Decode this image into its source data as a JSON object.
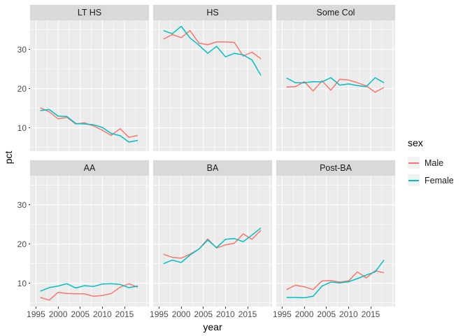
{
  "chart_data": {
    "type": "line",
    "title": "",
    "xlabel": "year",
    "ylabel": "pct",
    "x": [
      1996,
      1998,
      2000,
      2002,
      2004,
      2006,
      2008,
      2010,
      2012,
      2014,
      2016,
      2018
    ],
    "x_ticks": [
      1995,
      2000,
      2005,
      2010,
      2015
    ],
    "x_minor_ticks": [
      1997.5,
      2002.5,
      2007.5,
      2012.5,
      2017.5
    ],
    "x_extra_major_gridline": 2020,
    "y_ticks": [
      10,
      20,
      30
    ],
    "y_minor_ticks": [
      5,
      15,
      25,
      35
    ],
    "x_domain": [
      1993.67,
      2020.53
    ],
    "y_domain": [
      4.06,
      37.42
    ],
    "grid": true,
    "legend_position": "right",
    "legend": {
      "title": "sex",
      "entries": [
        {
          "label": "Male",
          "color": "#F8766D"
        },
        {
          "label": "Female",
          "color": "#00BFC4"
        }
      ]
    },
    "theme": {
      "panel_background": "#EBEBEB",
      "strip_background": "#D9D9D9",
      "grid_color": "#FFFFFF",
      "axis_text_color": "#4D4D4D",
      "tick_mark_color": "#333333"
    },
    "facets": [
      {
        "label": "LT HS",
        "series": [
          {
            "name": "Male",
            "values": [
              15.1,
              14.1,
              12.3,
              12.7,
              11.0,
              11.3,
              10.5,
              9.4,
              8.1,
              9.8,
              7.6,
              8.1
            ]
          },
          {
            "name": "Female",
            "values": [
              14.4,
              14.7,
              13.0,
              12.9,
              11.1,
              11.0,
              10.8,
              10.1,
              8.6,
              8.0,
              6.4,
              6.8
            ]
          }
        ]
      },
      {
        "label": "HS",
        "series": [
          {
            "name": "Male",
            "values": [
              32.6,
              33.8,
              33.0,
              34.8,
              31.6,
              31.2,
              31.9,
              31.9,
              31.8,
              28.3,
              29.3,
              27.6
            ]
          },
          {
            "name": "Female",
            "values": [
              34.8,
              34.0,
              35.9,
              32.9,
              31.1,
              29.0,
              30.8,
              28.1,
              29.0,
              28.6,
              27.3,
              23.4
            ]
          }
        ]
      },
      {
        "label": "Some Col",
        "series": [
          {
            "name": "Male",
            "values": [
              20.4,
              20.5,
              21.8,
              19.4,
              22.0,
              19.6,
              22.4,
              22.2,
              21.5,
              20.7,
              19.1,
              20.3
            ]
          },
          {
            "name": "Female",
            "values": [
              22.7,
              21.5,
              21.5,
              21.8,
              21.7,
              22.8,
              20.9,
              21.2,
              20.8,
              20.5,
              22.8,
              21.5
            ]
          }
        ]
      },
      {
        "label": "AA",
        "series": [
          {
            "name": "Male",
            "values": [
              6.4,
              5.7,
              7.7,
              7.4,
              7.3,
              7.3,
              6.7,
              6.9,
              7.4,
              9.0,
              9.9,
              9.0
            ]
          },
          {
            "name": "Female",
            "values": [
              8.0,
              8.9,
              9.3,
              9.9,
              8.8,
              9.4,
              9.2,
              9.8,
              9.9,
              9.7,
              8.9,
              9.3
            ]
          }
        ]
      },
      {
        "label": "BA",
        "series": [
          {
            "name": "Male",
            "values": [
              17.4,
              16.6,
              16.4,
              17.4,
              18.7,
              21.3,
              19.0,
              19.8,
              20.2,
              22.6,
              21.2,
              23.5
            ]
          },
          {
            "name": "Female",
            "values": [
              15.0,
              15.9,
              15.3,
              17.2,
              18.7,
              21.0,
              19.1,
              21.2,
              21.4,
              20.6,
              22.3,
              24.1
            ]
          }
        ]
      },
      {
        "label": "Post-BA",
        "series": [
          {
            "name": "Male",
            "values": [
              8.4,
              9.5,
              9.1,
              8.4,
              10.6,
              10.7,
              10.3,
              10.6,
              12.9,
              11.4,
              13.2,
              12.7
            ]
          },
          {
            "name": "Female",
            "values": [
              6.4,
              6.4,
              6.3,
              6.7,
              9.3,
              10.3,
              10.1,
              10.4,
              11.2,
              12.1,
              12.9,
              15.9
            ]
          }
        ]
      }
    ]
  }
}
